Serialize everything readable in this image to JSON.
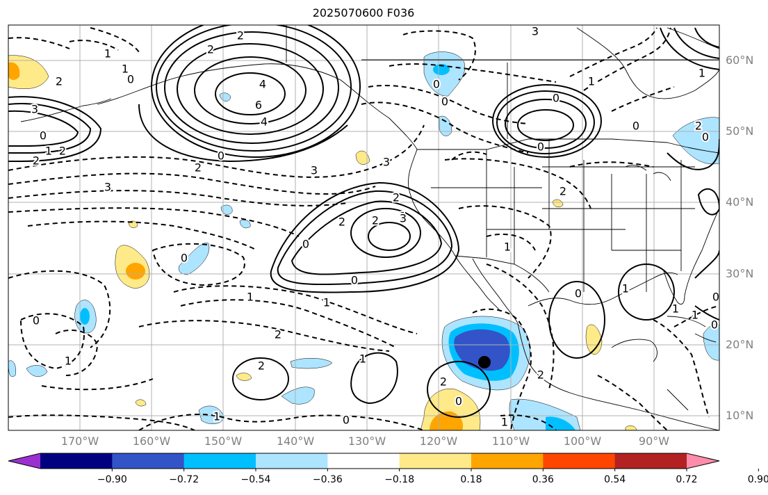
{
  "title": "2025070600 F036",
  "axes": {
    "lat_labels": [
      "60°N",
      "50°N",
      "40°N",
      "30°N",
      "20°N",
      "10°N"
    ],
    "lon_labels": [
      "170°W",
      "160°W",
      "150°W",
      "140°W",
      "130°W",
      "120°W",
      "110°W",
      "100°W",
      "90°W"
    ],
    "extent": {
      "lon_min": -180,
      "lon_max": -80,
      "lat_min": 8,
      "lat_max": 65
    }
  },
  "colorbar": {
    "colors": [
      "#9b30d0",
      "#000080",
      "#3254c8",
      "#00bfff",
      "#ade4ff",
      "#ffffff",
      "#ffea8a",
      "#ffa500",
      "#ff4500",
      "#b22222",
      "#ff8caa"
    ],
    "tick_labels": [
      "−0.90",
      "−0.72",
      "−0.54",
      "−0.36",
      "−0.18",
      "0.18",
      "0.36",
      "0.54",
      "0.72",
      "0.90"
    ],
    "extend": "both"
  },
  "contour_labels": [
    "2",
    "2",
    "4",
    "6",
    "4",
    "0",
    "1",
    "1",
    "2",
    "3",
    "0",
    "1",
    "2",
    "2",
    "0",
    "3",
    "2",
    "3",
    "3",
    "1",
    "2",
    "2",
    "3",
    "2",
    "0",
    "0",
    "1",
    "1",
    "2",
    "0",
    "1",
    "0",
    "2",
    "1",
    "2",
    "0",
    "0",
    "1",
    "1",
    "2",
    "0",
    "0",
    "0",
    "0",
    "2",
    "1",
    "1",
    "3",
    "1",
    "0",
    "2",
    "0",
    "0",
    "1",
    "1",
    "1",
    "0",
    "0"
  ],
  "markers": {
    "storm_center": {
      "lon": -113.5,
      "lat": 17.5
    }
  }
}
